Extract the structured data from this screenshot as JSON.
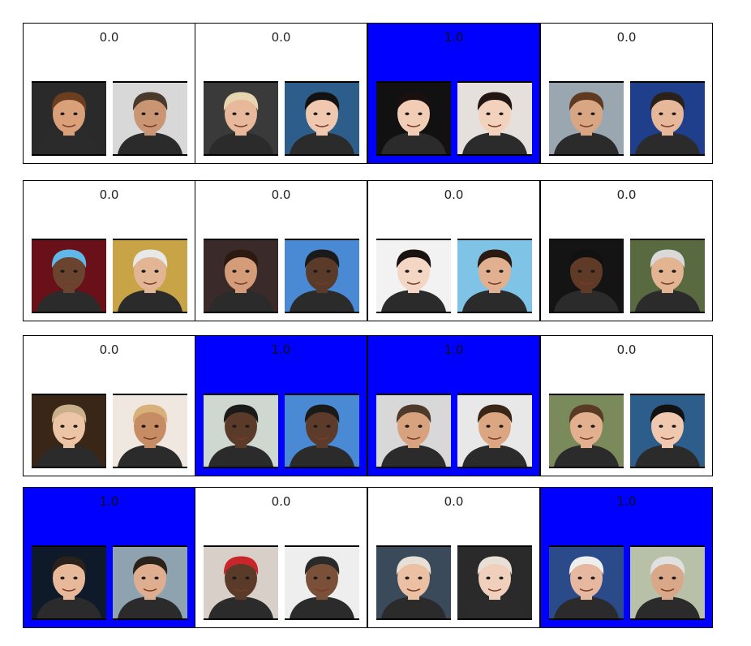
{
  "pairs": [
    {
      "score": "0.0",
      "match": false,
      "a": {
        "icon": "face-photo-icon",
        "bg": "#2a2a2a",
        "skin": "#d9a07a",
        "hair": "#6a3e1e"
      },
      "b": {
        "icon": "face-photo-icon",
        "bg": "#d8d8d8",
        "skin": "#c99572",
        "hair": "#4a3a2c"
      }
    },
    {
      "score": "0.0",
      "match": false,
      "a": {
        "icon": "face-photo-icon",
        "bg": "#3a3a3a",
        "skin": "#e8b89a",
        "hair": "#e6d6b0"
      },
      "b": {
        "icon": "face-photo-icon",
        "bg": "#2d5d8a",
        "skin": "#f0c8b0",
        "hair": "#121212"
      }
    },
    {
      "score": "1.0",
      "match": true,
      "a": {
        "icon": "face-photo-icon",
        "bg": "#111111",
        "skin": "#f1cdb6",
        "hair": "#1a1010"
      },
      "b": {
        "icon": "face-photo-icon",
        "bg": "#e6e0dc",
        "skin": "#f3d2bd",
        "hair": "#221613"
      }
    },
    {
      "score": "0.0",
      "match": false,
      "a": {
        "icon": "face-photo-icon",
        "bg": "#9aa6b0",
        "skin": "#d8a682",
        "hair": "#5e3b20"
      },
      "b": {
        "icon": "face-photo-icon",
        "bg": "#1f3f8c",
        "skin": "#e7b79a",
        "hair": "#2a211b"
      }
    },
    {
      "score": "0.0",
      "match": false,
      "a": {
        "icon": "face-photo-icon",
        "bg": "#6a1018",
        "skin": "#6b4430",
        "hair": "#5fb8e8"
      },
      "b": {
        "icon": "face-photo-icon",
        "bg": "#c9a447",
        "skin": "#e2b595",
        "hair": "#e8e8e8"
      }
    },
    {
      "score": "0.0",
      "match": false,
      "a": {
        "icon": "face-photo-icon",
        "bg": "#3b2a2a",
        "skin": "#d59c7a",
        "hair": "#2c1a10"
      },
      "b": {
        "icon": "face-photo-icon",
        "bg": "#4a8ad4",
        "skin": "#5a3a28",
        "hair": "#1a1a1a"
      }
    },
    {
      "score": "0.0",
      "match": false,
      "a": {
        "icon": "face-photo-icon",
        "bg": "#f2f2f2",
        "skin": "#f4d6c4",
        "hair": "#1a1210"
      },
      "b": {
        "icon": "face-photo-icon",
        "bg": "#7fc3e6",
        "skin": "#e0b090",
        "hair": "#2a1a12"
      }
    },
    {
      "score": "0.0",
      "match": false,
      "a": {
        "icon": "face-photo-icon",
        "bg": "#141414",
        "skin": "#5f3a26",
        "hair": "#111111"
      },
      "b": {
        "icon": "face-photo-icon",
        "bg": "#5a6a40",
        "skin": "#e2b492",
        "hair": "#d9d9d9"
      }
    },
    {
      "score": "0.0",
      "match": false,
      "a": {
        "icon": "face-photo-icon",
        "bg": "#3a2616",
        "skin": "#ecc4a6",
        "hair": "#c9b08a"
      },
      "b": {
        "icon": "face-photo-icon",
        "bg": "#f0e8e0",
        "skin": "#c68c64",
        "hair": "#d8b07a"
      }
    },
    {
      "score": "1.0",
      "match": true,
      "a": {
        "icon": "face-photo-icon",
        "bg": "#cfd8d0",
        "skin": "#5a3a28",
        "hair": "#1a1a1a"
      },
      "b": {
        "icon": "face-photo-icon",
        "bg": "#4a8ad4",
        "skin": "#5c3b2a",
        "hair": "#1a1a1a"
      }
    },
    {
      "score": "1.0",
      "match": true,
      "a": {
        "icon": "face-photo-icon",
        "bg": "#d8d8d8",
        "skin": "#d8a27e",
        "hair": "#4e3a2a"
      },
      "b": {
        "icon": "face-photo-icon",
        "bg": "#e8e8e8",
        "skin": "#dca682",
        "hair": "#3a2616"
      }
    },
    {
      "score": "0.0",
      "match": false,
      "a": {
        "icon": "face-photo-icon",
        "bg": "#7a8a5a",
        "skin": "#e2b08e",
        "hair": "#5a3a24"
      },
      "b": {
        "icon": "face-photo-icon",
        "bg": "#2d5d8a",
        "skin": "#f0c8b0",
        "hair": "#121212"
      }
    },
    {
      "score": "1.0",
      "match": true,
      "a": {
        "icon": "face-photo-icon",
        "bg": "#0e1a2a",
        "skin": "#e8b89a",
        "hair": "#2a211b"
      },
      "b": {
        "icon": "face-photo-icon",
        "bg": "#8fa2b0",
        "skin": "#dfae90",
        "hair": "#2a211b"
      }
    },
    {
      "score": "0.0",
      "match": false,
      "a": {
        "icon": "face-photo-icon",
        "bg": "#d8d0c8",
        "skin": "#5a3a28",
        "hair": "#c8262a"
      },
      "b": {
        "icon": "face-photo-icon",
        "bg": "#eeeeee",
        "skin": "#7a5038",
        "hair": "#2a2a2a"
      }
    },
    {
      "score": "0.0",
      "match": false,
      "a": {
        "icon": "face-photo-icon",
        "bg": "#3a4a5a",
        "skin": "#ecc0a2",
        "hair": "#e6e0d6"
      },
      "b": {
        "icon": "face-photo-icon",
        "bg": "#2a2a2a",
        "skin": "#f0d0bc",
        "hair": "#e8e0d6"
      }
    },
    {
      "score": "1.0",
      "match": true,
      "a": {
        "icon": "face-photo-icon",
        "bg": "#2a4a8a",
        "skin": "#e6b8a0",
        "hair": "#eeeeee"
      },
      "b": {
        "icon": "face-photo-icon",
        "bg": "#b8c0a8",
        "skin": "#d8a888",
        "hair": "#e0e0e0"
      }
    }
  ]
}
